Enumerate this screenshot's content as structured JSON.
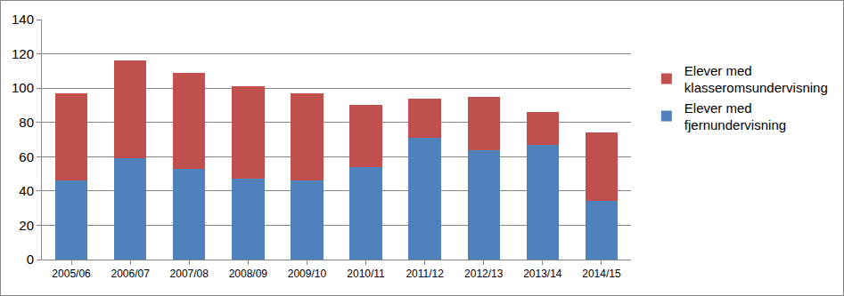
{
  "chart_data": {
    "type": "bar",
    "stacked": true,
    "grid": true,
    "legend": "right",
    "categories": [
      "2005/06",
      "2006/07",
      "2007/08",
      "2008/09",
      "2009/10",
      "2010/11",
      "2011/12",
      "2012/13",
      "2013/14",
      "2014/15"
    ],
    "series": [
      {
        "name": "Elever med fjernundervisning",
        "color": "#4f81bd",
        "values": [
          46,
          59,
          53,
          47,
          46,
          54,
          71,
          64,
          67,
          34
        ]
      },
      {
        "name": "Elever med klasseromsundervisning",
        "color": "#c0504d",
        "values": [
          51,
          57,
          56,
          54,
          51,
          36,
          23,
          31,
          19,
          40
        ]
      }
    ],
    "ylim": [
      0,
      140
    ],
    "yticks": [
      0,
      20,
      40,
      60,
      80,
      100,
      120,
      140
    ]
  }
}
